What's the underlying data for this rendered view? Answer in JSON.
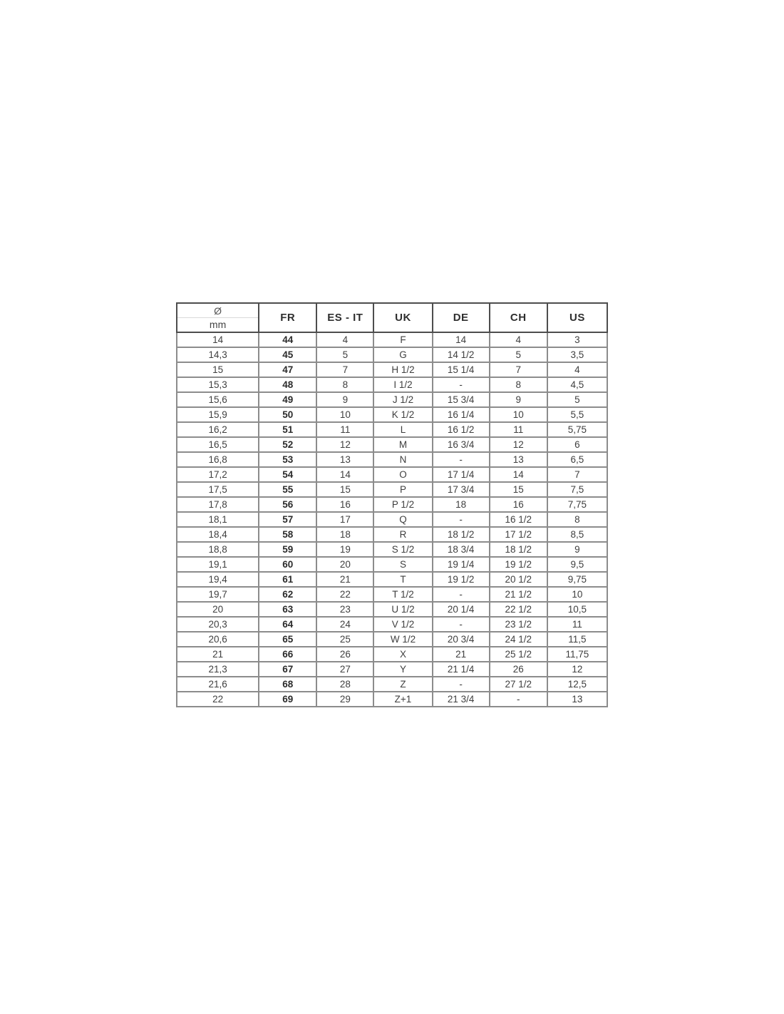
{
  "table": {
    "type": "table",
    "description_colors": {
      "text": "#3f3f3f",
      "grid": "#8c8c8c",
      "outer_border": "#4d4d4d",
      "header_divider": "#d9d9d9",
      "background": "#ffffff"
    },
    "header": {
      "diameter_symbol": "Ø",
      "diameter_unit": "mm",
      "columns": [
        "FR",
        "ES - IT",
        "UK",
        "DE",
        "CH",
        "US"
      ]
    },
    "rows": [
      [
        "14",
        "44",
        "4",
        "F",
        "14",
        "4",
        "3"
      ],
      [
        "14,3",
        "45",
        "5",
        "G",
        "14 1/2",
        "5",
        "3,5"
      ],
      [
        "15",
        "47",
        "7",
        "H 1/2",
        "15 1/4",
        "7",
        "4"
      ],
      [
        "15,3",
        "48",
        "8",
        "I 1/2",
        "-",
        "8",
        "4,5"
      ],
      [
        "15,6",
        "49",
        "9",
        "J 1/2",
        "15 3/4",
        "9",
        "5"
      ],
      [
        "15,9",
        "50",
        "10",
        "K 1/2",
        "16 1/4",
        "10",
        "5,5"
      ],
      [
        "16,2",
        "51",
        "11",
        "L",
        "16 1/2",
        "11",
        "5,75"
      ],
      [
        "16,5",
        "52",
        "12",
        "M",
        "16 3/4",
        "12",
        "6"
      ],
      [
        "16,8",
        "53",
        "13",
        "N",
        "-",
        "13",
        "6,5"
      ],
      [
        "17,2",
        "54",
        "14",
        "O",
        "17 1/4",
        "14",
        "7"
      ],
      [
        "17,5",
        "55",
        "15",
        "P",
        "17 3/4",
        "15",
        "7,5"
      ],
      [
        "17,8",
        "56",
        "16",
        "P 1/2",
        "18",
        "16",
        "7,75"
      ],
      [
        "18,1",
        "57",
        "17",
        "Q",
        "-",
        "16 1/2",
        "8"
      ],
      [
        "18,4",
        "58",
        "18",
        "R",
        "18 1/2",
        "17 1/2",
        "8,5"
      ],
      [
        "18,8",
        "59",
        "19",
        "S 1/2",
        "18 3/4",
        "18 1/2",
        "9"
      ],
      [
        "19,1",
        "60",
        "20",
        "S",
        "19 1/4",
        "19 1/2",
        "9,5"
      ],
      [
        "19,4",
        "61",
        "21",
        "T",
        "19 1/2",
        "20 1/2",
        "9,75"
      ],
      [
        "19,7",
        "62",
        "22",
        "T 1/2",
        "-",
        "21 1/2",
        "10"
      ],
      [
        "20",
        "63",
        "23",
        "U 1/2",
        "20 1/4",
        "22 1/2",
        "10,5"
      ],
      [
        "20,3",
        "64",
        "24",
        "V 1/2",
        "-",
        "23 1/2",
        "11"
      ],
      [
        "20,6",
        "65",
        "25",
        "W 1/2",
        "20 3/4",
        "24 1/2",
        "11,5"
      ],
      [
        "21",
        "66",
        "26",
        "X",
        "21",
        "25 1/2",
        "11,75"
      ],
      [
        "21,3",
        "67",
        "27",
        "Y",
        "21 1/4",
        "26",
        "12"
      ],
      [
        "21,6",
        "68",
        "28",
        "Z",
        "-",
        "27 1/2",
        "12,5"
      ],
      [
        "22",
        "69",
        "29",
        "Z+1",
        "21 3/4",
        "-",
        "13"
      ]
    ]
  }
}
